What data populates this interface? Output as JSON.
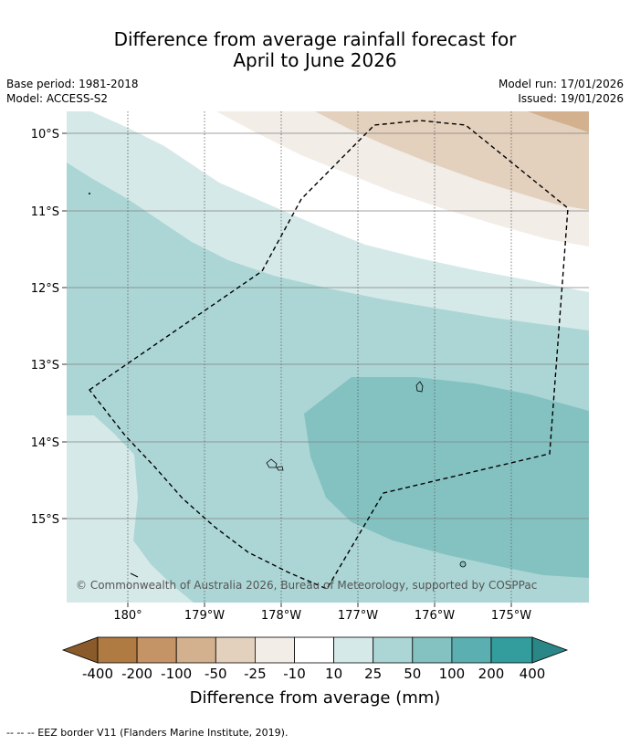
{
  "title": {
    "line1": "Difference from average rainfall forecast for",
    "line2": "April to June 2026"
  },
  "meta": {
    "base_period": "Base period: 1981-2018",
    "model": "Model: ACCESS-S2",
    "model_run": "Model run: 17/01/2026",
    "issued": "Issued: 19/01/2026"
  },
  "map": {
    "lat_labels": [
      "10°S",
      "11°S",
      "12°S",
      "13°S",
      "14°S",
      "15°S"
    ],
    "lon_labels": [
      "180°",
      "179°W",
      "178°W",
      "177°W",
      "176°W",
      "175°W"
    ],
    "copyright": "© Commonwealth of Australia 2026, Bureau of Meteorology, supported by COSPPac"
  },
  "legend": {
    "ticks": [
      "-400",
      "-200",
      "-100",
      "-50",
      "-25",
      "-10",
      "10",
      "25",
      "50",
      "100",
      "200",
      "400"
    ],
    "colors": [
      "#8a5a2b",
      "#b07a43",
      "#c49466",
      "#d3b08e",
      "#e3d0bd",
      "#f2ede7",
      "#ffffff",
      "#d5e9e8",
      "#acd6d5",
      "#84c2c1",
      "#5cafb0",
      "#339c9c",
      "#2b8787"
    ],
    "label": "Difference from average (mm)"
  },
  "footer": {
    "eez_note": "--  --  -- EEZ border V11 (Flanders Marine Institute, 2019)."
  }
}
